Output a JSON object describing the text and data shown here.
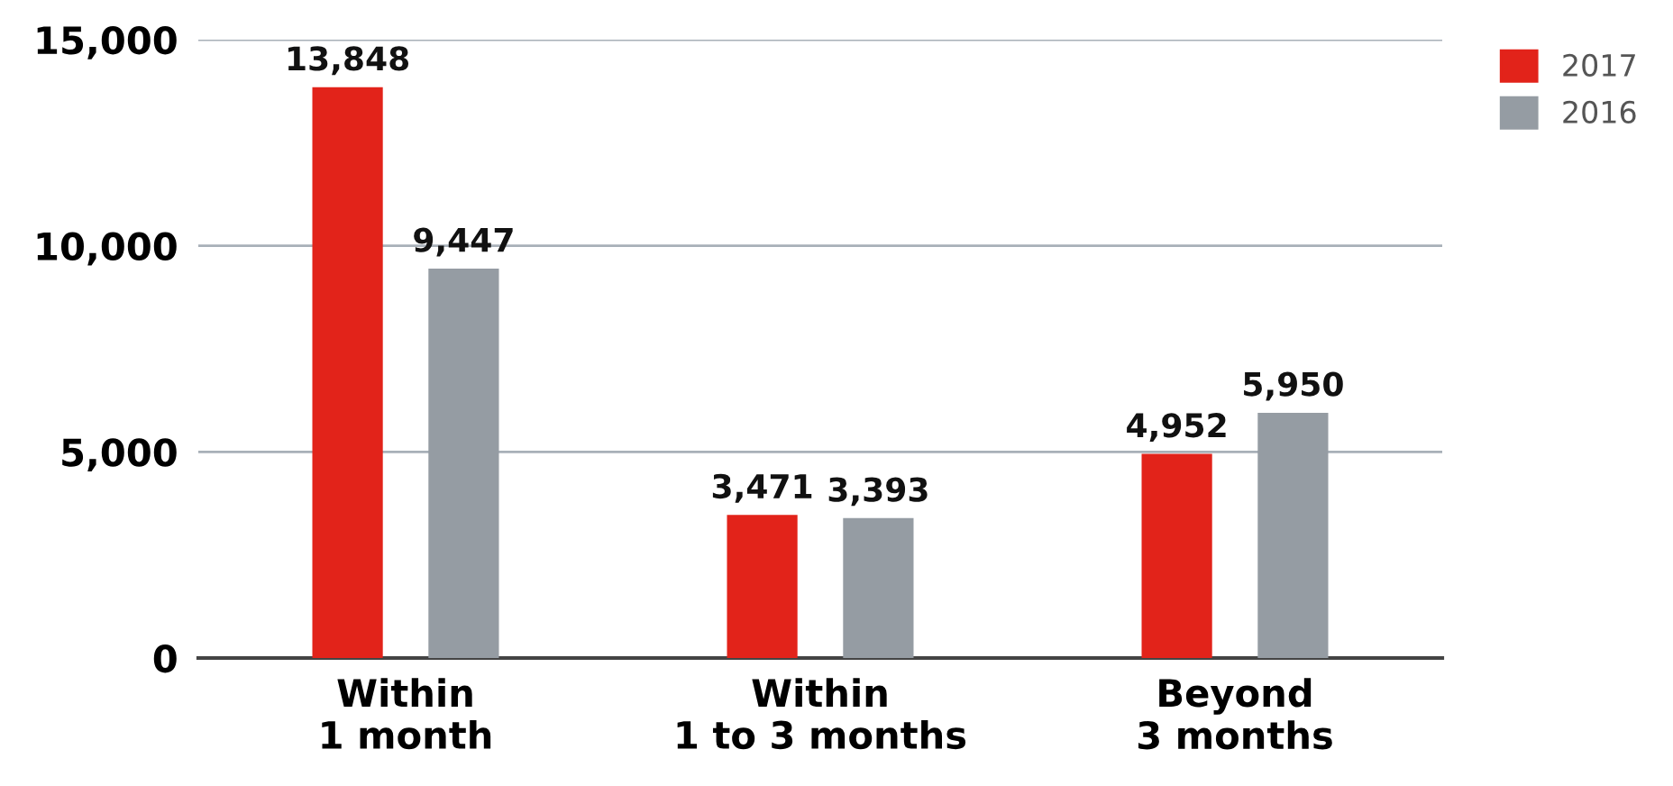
{
  "chart_data": {
    "type": "bar",
    "categories": [
      "Within\n1 month",
      "Within\n1 to 3 months",
      "Beyond\n3 months"
    ],
    "series": [
      {
        "name": "2017",
        "color": "#e2231a",
        "values": [
          13848,
          3471,
          4952
        ],
        "value_labels": [
          "13,848",
          "3,471",
          "4,952"
        ]
      },
      {
        "name": "2016",
        "color": "#959ca3",
        "values": [
          9447,
          3393,
          5950
        ],
        "value_labels": [
          "9,447",
          "3,393",
          "5,950"
        ]
      }
    ],
    "ylim": [
      0,
      15000
    ],
    "yticks": [
      {
        "value": 0,
        "label": "0"
      },
      {
        "value": 5000,
        "label": "5,000"
      },
      {
        "value": 10000,
        "label": "10,000"
      },
      {
        "value": 15000,
        "label": "15,000"
      }
    ],
    "grid": "y",
    "legend": "top right"
  }
}
